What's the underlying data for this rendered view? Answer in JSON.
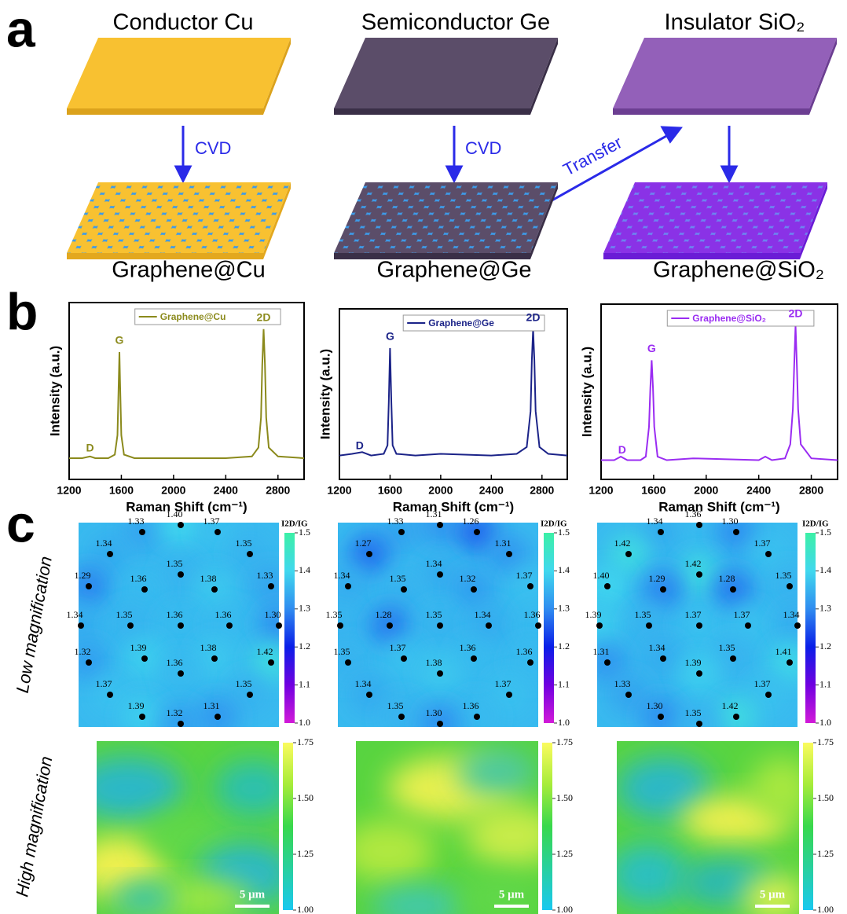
{
  "panel_a": {
    "label": "a",
    "substrates": [
      "Conductor Cu",
      "Semiconductor Ge",
      "Insulator SiO₂"
    ],
    "arrows": [
      "CVD",
      "CVD",
      "Transfer"
    ]
  },
  "panel_b": {
    "label": "b"
  },
  "chart_data": [
    {
      "type": "line",
      "title": "Graphene@Cu",
      "x_label": "Raman Shift (cm⁻¹)",
      "y_label": "Intensity (a.u.)",
      "x": [
        1200,
        1300,
        1360,
        1400,
        1500,
        1550,
        1570,
        1580,
        1585,
        1590,
        1600,
        1620,
        1700,
        2000,
        2400,
        2600,
        2650,
        2670,
        2680,
        2690,
        2700,
        2710,
        2730,
        2800,
        3000
      ],
      "series": [
        {
          "name": "Graphene@Cu",
          "color": "#8b8a1c",
          "values": [
            0.12,
            0.12,
            0.13,
            0.12,
            0.12,
            0.14,
            0.25,
            0.55,
            0.72,
            0.55,
            0.25,
            0.14,
            0.12,
            0.12,
            0.12,
            0.13,
            0.18,
            0.35,
            0.65,
            0.85,
            0.65,
            0.35,
            0.18,
            0.13,
            0.12
          ]
        }
      ],
      "peak_labels": [
        "D",
        "G",
        "2D"
      ],
      "xlim": [
        1200,
        3000
      ],
      "xticks": [
        1200,
        1600,
        2000,
        2400,
        2800
      ],
      "ylim": [
        0,
        1
      ]
    },
    {
      "type": "line",
      "title": "Graphene@Ge",
      "x_label": "Raman Shift (cm⁻¹)",
      "y_label": "Intensity (a.u.)",
      "x": [
        1200,
        1300,
        1380,
        1450,
        1550,
        1580,
        1590,
        1600,
        1610,
        1620,
        1650,
        1800,
        2000,
        2400,
        2600,
        2680,
        2710,
        2720,
        2730,
        2740,
        2750,
        2780,
        2850,
        3000
      ],
      "series": [
        {
          "name": "Graphene@Ge",
          "color": "#1b2388",
          "values": [
            0.14,
            0.15,
            0.16,
            0.14,
            0.15,
            0.2,
            0.45,
            0.77,
            0.45,
            0.2,
            0.15,
            0.14,
            0.15,
            0.14,
            0.15,
            0.19,
            0.4,
            0.7,
            0.88,
            0.7,
            0.4,
            0.19,
            0.15,
            0.14
          ]
        }
      ],
      "peak_labels": [
        "D",
        "G",
        "2D"
      ],
      "xlim": [
        1200,
        3000
      ],
      "xticks": [
        1200,
        1600,
        2000,
        2400,
        2800
      ],
      "ylim": [
        0,
        1
      ]
    },
    {
      "type": "line",
      "title": "Graphene@SiO₂",
      "x_label": "Raman Shift (cm⁻¹)",
      "y_label": "Intensity (a.u.)",
      "x": [
        1200,
        1300,
        1350,
        1400,
        1500,
        1540,
        1565,
        1575,
        1585,
        1595,
        1605,
        1630,
        1700,
        1900,
        2400,
        2450,
        2500,
        2600,
        2640,
        2660,
        2670,
        2680,
        2690,
        2700,
        2720,
        2800,
        3000
      ],
      "series": [
        {
          "name": "Graphene@SiO₂",
          "color": "#9a2cf2",
          "values": [
            0.11,
            0.11,
            0.13,
            0.11,
            0.11,
            0.13,
            0.3,
            0.52,
            0.68,
            0.52,
            0.3,
            0.13,
            0.11,
            0.12,
            0.11,
            0.13,
            0.11,
            0.12,
            0.2,
            0.4,
            0.65,
            0.88,
            0.65,
            0.4,
            0.2,
            0.12,
            0.11
          ]
        }
      ],
      "peak_labels": [
        "D",
        "G",
        "2D"
      ],
      "xlim": [
        1200,
        3000
      ],
      "xticks": [
        1200,
        1600,
        2000,
        2400,
        2800
      ],
      "ylim": [
        0,
        1
      ]
    }
  ],
  "panel_c": {
    "label": "c",
    "rows": [
      "Low magnification",
      "High magnification"
    ],
    "colorbar_title": "I2D/IG",
    "scale_bar": "5 μm",
    "low_lim": [
      1,
      1.5
    ],
    "low_ticks": [
      {
        "value": 1,
        "label": "1.0"
      },
      1.1,
      1.2,
      1.3,
      1.4,
      1.5
    ],
    "high_lim": [
      1,
      1.75
    ],
    "high_ticks": [
      {
        "value": 1,
        "label": "1.00"
      },
      1.25,
      {
        "value": 1.5,
        "label": "1.50"
      },
      1.75
    ],
    "low_maps": [
      {
        "values": [
          1.33,
          1.4,
          1.37,
          1.34,
          1.35,
          1.29,
          1.35,
          1.36,
          1.38,
          1.33,
          1.34,
          1.35,
          1.36,
          1.36,
          1.3,
          1.32,
          1.39,
          1.38,
          1.42,
          1.36,
          1.37,
          1.35,
          1.39,
          1.31,
          1.32
        ],
        "value_labels": [
          "1.33",
          "1.40",
          "1.37",
          "1.34",
          "1.35",
          "1.29",
          "1.35",
          "1.36",
          "1.38",
          "1.33",
          "1.34",
          "1.35",
          "1.36",
          "1.36",
          "1.30",
          "1.32",
          "1.39",
          "1.38",
          "1.42",
          "1.36",
          "1.37",
          "1.35",
          "1.39",
          "1.31",
          "1.32"
        ]
      },
      {
        "values": [
          1.33,
          1.31,
          1.26,
          1.27,
          1.31,
          1.34,
          1.34,
          1.35,
          1.32,
          1.37,
          1.35,
          1.28,
          1.35,
          1.34,
          1.36,
          1.35,
          1.37,
          1.36,
          1.36,
          1.38,
          1.34,
          1.37,
          1.35,
          1.36,
          1.3
        ],
        "value_labels": [
          "1.33",
          "1.31",
          "1.26",
          "1.27",
          "1.31",
          "1.34",
          "1.34",
          "1.35",
          "1.32",
          "1.37",
          "1.35",
          "1.28",
          "1.35",
          "1.34",
          "1.36",
          "1.35",
          "1.37",
          "1.36",
          "1.36",
          "1.38",
          "1.34",
          "1.37",
          "1.35",
          "1.36",
          "1.30"
        ]
      },
      {
        "values": [
          1.34,
          1.36,
          1.3,
          1.42,
          1.37,
          1.4,
          1.42,
          1.29,
          1.28,
          1.35,
          1.39,
          1.35,
          1.37,
          1.37,
          1.34,
          1.31,
          1.34,
          1.35,
          1.41,
          1.39,
          1.33,
          1.37,
          1.3,
          1.42,
          1.35
        ],
        "value_labels": [
          "1.34",
          "1.36",
          "1.30",
          "1.42",
          "1.37",
          "1.40",
          "1.42",
          "1.29",
          "1.28",
          "1.35",
          "1.39",
          "1.35",
          "1.37",
          "1.37",
          "1.34",
          "1.31",
          "1.34",
          "1.35",
          "1.41",
          "1.39",
          "1.33",
          "1.37",
          "1.30",
          "1.42",
          "1.35"
        ]
      }
    ]
  }
}
